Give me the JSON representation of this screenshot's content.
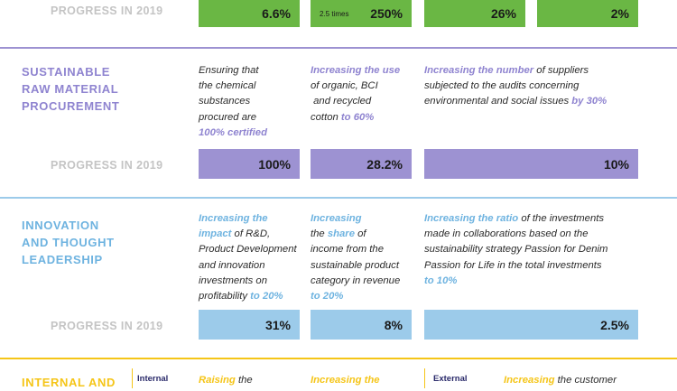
{
  "colors": {
    "green": "#6ab744",
    "purple": "#9d92d2",
    "blue": "#9ccbea",
    "yellow": "#f5c518",
    "purple_text": "#8f84d0",
    "blue_text": "#6eb3e0"
  },
  "row_top": {
    "progress_label": "PROGRESS IN 2019",
    "values": [
      "6.6%",
      "250%",
      "26%",
      "2%"
    ],
    "multiplier_note": "2.5 times"
  },
  "procurement": {
    "title_lines": [
      "SUSTAINABLE",
      "RAW MATERIAL",
      "PROCUREMENT"
    ],
    "col1": {
      "lines": [
        "Ensuring that",
        "the chemical",
        "substances",
        "procured are"
      ],
      "highlight": "100% certified"
    },
    "col2": {
      "highlight": "Increasing the use",
      "lines": [
        "of organic, BCI",
        " and recycled"
      ],
      "last_plain": "cotton ",
      "last_highlight": "to 60%"
    },
    "col3": {
      "highlight": "Increasing the number",
      "first_rest": " of suppliers",
      "line2": "subjected to the audits concerning",
      "line3_plain": "environmental and social issues ",
      "line3_highlight": "by 30%"
    },
    "progress_label": "PROGRESS IN 2019",
    "values": [
      "100%",
      "28.2%",
      "10%"
    ]
  },
  "innovation": {
    "title_lines": [
      "INNOVATION",
      "AND THOUGHT",
      "LEADERSHIP"
    ],
    "col1": {
      "line1_highlight": "Increasing the",
      "line2_highlight": "impact",
      "line2_rest": " of R&D,",
      "lines": [
        "Product Development",
        "and innovation",
        "investments on"
      ],
      "last_plain": "profitability ",
      "last_highlight": "to 20%"
    },
    "col2": {
      "line1_highlight": "Increasing",
      "line2_plain": "the ",
      "line2_highlight": "share",
      "line2_rest": " of",
      "lines": [
        "income from the",
        "sustainable product",
        "category in revenue"
      ],
      "last_highlight": "to 20%"
    },
    "col3": {
      "highlight": "Increasing the ratio",
      "first_rest": " of the investments",
      "lines": [
        "made in collaborations based on the",
        "sustainability strategy Passion for Denim",
        "Passion for Life in the total investments"
      ],
      "last_highlight": "to 10%"
    },
    "progress_label": "PROGRESS IN 2019",
    "values": [
      "31%",
      "8%",
      "2.5%"
    ]
  },
  "bottom": {
    "title": "INTERNAL AND",
    "internal_tag": "Internal",
    "col1_highlight": "Raising",
    "col1_rest": " the",
    "col2_highlight": "Increasing the",
    "external_tag": "External",
    "col3_highlight": "Increasing",
    "col3_rest": " the customer"
  }
}
